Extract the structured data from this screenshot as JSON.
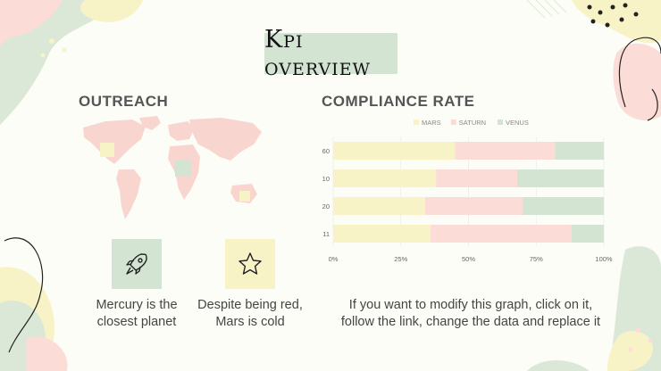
{
  "slide": {
    "title": "Kpi overview"
  },
  "outreach": {
    "heading": "OUTREACH",
    "items": [
      {
        "icon": "rocket-icon",
        "caption_line1": "Mercury is the",
        "caption_line2": "closest planet",
        "box_color": "#d3e4d3"
      },
      {
        "icon": "star-icon",
        "caption_line1": "Despite being red,",
        "caption_line2": "Mars is  cold",
        "box_color": "#f7f3c6"
      }
    ]
  },
  "compliance": {
    "heading": "COMPLIANCE RATE",
    "note_line1": "If you want to modify this graph, click on it,",
    "note_line2": "follow the link, change the data and replace it"
  },
  "colors": {
    "mars": "#f7f3c6",
    "saturn": "#fbdcd6",
    "venus": "#d3e4d3",
    "map": "#f9d5d0"
  },
  "chart_data": {
    "type": "bar",
    "orientation": "horizontal",
    "stacked": true,
    "categories": [
      "60",
      "10",
      "20",
      "11"
    ],
    "series": [
      {
        "name": "MARS",
        "color": "#f7f3c6",
        "values": [
          45,
          38,
          34,
          36
        ]
      },
      {
        "name": "SATURN",
        "color": "#fbdcd6",
        "values": [
          37,
          30,
          36,
          52
        ]
      },
      {
        "name": "VENUS",
        "color": "#d3e4d3",
        "values": [
          18,
          32,
          30,
          12
        ]
      }
    ],
    "xticks": [
      "0%",
      "25%",
      "50%",
      "75%",
      "100%"
    ],
    "xlim": [
      0,
      100
    ],
    "legend": "top-right",
    "grid": true
  }
}
